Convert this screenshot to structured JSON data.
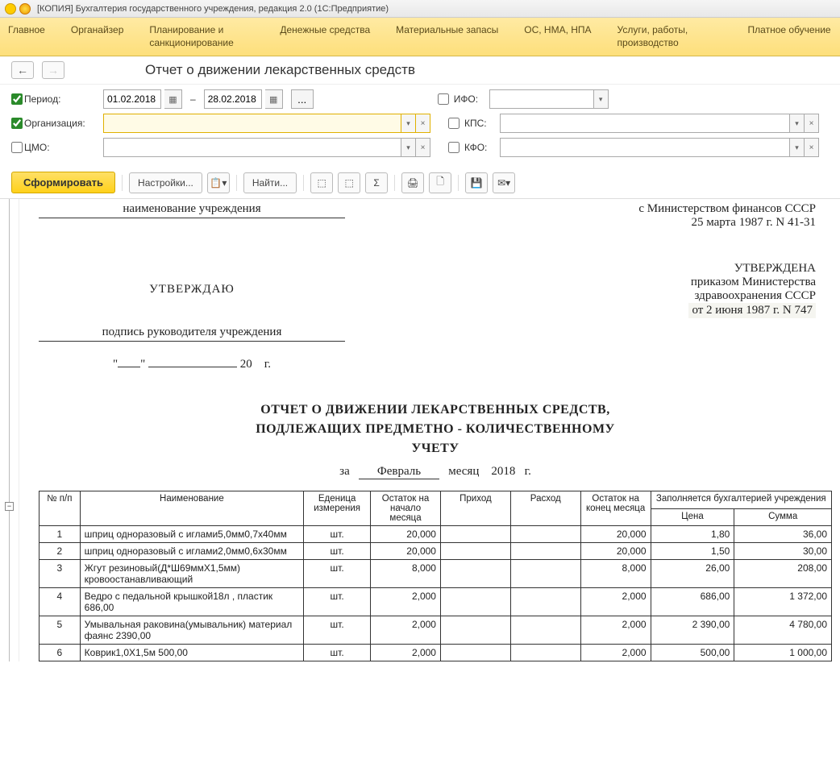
{
  "window": {
    "title": "[КОПИЯ] Бухгалтерия государственного учреждения, редакция 2.0  (1С:Предприятие)"
  },
  "menu": {
    "items": [
      "Главное",
      "Органайзер",
      "Планирование и санкционирование",
      "Денежные средства",
      "Материальные запасы",
      "ОС, НМА, НПА",
      "Услуги, работы, производство",
      "Платное обучение"
    ]
  },
  "page": {
    "title": "Отчет о движении лекарственных средств"
  },
  "filters": {
    "period_label": "Период:",
    "date_from": "01.02.2018",
    "date_to": "28.02.2018",
    "dash": "–",
    "org_label": "Организация:",
    "cmo_label": "ЦМО:",
    "ifo_label": "ИФО:",
    "kps_label": "КПС:",
    "kfo_label": "КФО:",
    "dots": "..."
  },
  "toolbar": {
    "generate": "Сформировать",
    "settings": "Настройки...",
    "find": "Найти..."
  },
  "doc": {
    "inst_name": "наименование учреждения",
    "approve": "УТВЕРЖДАЮ",
    "sign": "подпись руководителя учреждения",
    "date_template": "\"___\" ____________ 20     г.",
    "right1": "с Министерством финансов СССР",
    "right2": "25 марта 1987 г. N 41-31",
    "right3": "УТВЕРЖДЕНА",
    "right4": "приказом Министерства",
    "right5": "здравоохранения СССР",
    "right6": "от 2 июня 1987 г. N 747",
    "title1": "ОТЧЕТ О ДВИЖЕНИИ ЛЕКАРСТВЕННЫХ СРЕДСТВ,",
    "title2": "ПОДЛЕЖАЩИХ ПРЕДМЕТНО - КОЛИЧЕСТВЕННОМУ",
    "title3": "УЧЕТУ",
    "sub_za": "за",
    "sub_month": "Февраль",
    "sub_mword": "месяц",
    "sub_year": "2018",
    "sub_g": "г."
  },
  "table": {
    "headers": {
      "npp": "№ п/п",
      "name": "Наименование",
      "unit": "Еденица измерения",
      "start": "Остаток на начало месяца",
      "in": "Приход",
      "out": "Расход",
      "end": "Остаток на конец месяца",
      "acc": "Заполняется бухгалтерией учреждения",
      "price": "Цена",
      "sum": "Сумма"
    },
    "rows": [
      {
        "n": "1",
        "name": "шприц одноразовый с иглами5,0мм0,7х40мм",
        "unit": "шт.",
        "start": "20,000",
        "in": "",
        "out": "",
        "end": "20,000",
        "price": "1,80",
        "sum": "36,00"
      },
      {
        "n": "2",
        "name": "шприц одноразовый с иглами2,0мм0,6х30мм",
        "unit": "шт.",
        "start": "20,000",
        "in": "",
        "out": "",
        "end": "20,000",
        "price": "1,50",
        "sum": "30,00"
      },
      {
        "n": "3",
        "name": "Жгут резиновый(Д*Ш69ммХ1,5мм) кровоостанавливающий",
        "unit": "шт.",
        "start": "8,000",
        "in": "",
        "out": "",
        "end": "8,000",
        "price": "26,00",
        "sum": "208,00"
      },
      {
        "n": "4",
        "name": "Ведро с педальной крышкой18л , пластик 686,00",
        "unit": "шт.",
        "start": "2,000",
        "in": "",
        "out": "",
        "end": "2,000",
        "price": "686,00",
        "sum": "1 372,00"
      },
      {
        "n": "5",
        "name": "Умывальная раковина(умывальник) материал фаянс 2390,00",
        "unit": "шт.",
        "start": "2,000",
        "in": "",
        "out": "",
        "end": "2,000",
        "price": "2 390,00",
        "sum": "4 780,00"
      },
      {
        "n": "6",
        "name": "Коврик1,0Х1,5м 500,00",
        "unit": "шт.",
        "start": "2,000",
        "in": "",
        "out": "",
        "end": "2,000",
        "price": "500,00",
        "sum": "1 000,00"
      }
    ]
  },
  "colors": {
    "menubar_bg": "#fde58a",
    "primary_btn": "#ffd11a",
    "highlight_border": "#e0b000"
  }
}
